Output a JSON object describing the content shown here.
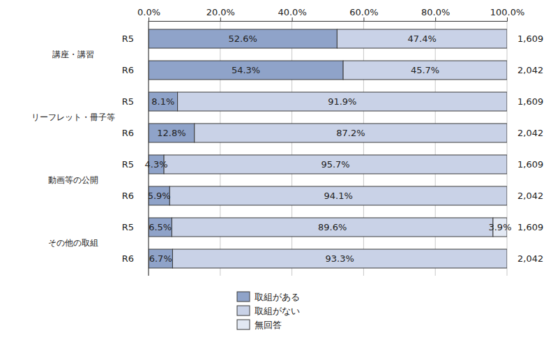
{
  "chart_data": {
    "type": "bar",
    "orientation": "horizontal",
    "stacked": true,
    "data_labels": true,
    "grid": true,
    "legend": "bottom",
    "categories": [
      "R5",
      "R6",
      "R5",
      "R6",
      "R5",
      "R6",
      "R5",
      "R6"
    ],
    "groups": [
      "講座・講習",
      "リーフレット・冊子等",
      "動画等の公開",
      "その他の取組"
    ],
    "n": [
      1609,
      2042,
      1609,
      2042,
      1609,
      2042,
      1609,
      2042
    ],
    "n_labels": [
      "1,609",
      "2,042",
      "1,609",
      "2,042",
      "1,609",
      "2,042",
      "1,609",
      "2,042"
    ],
    "xlim": [
      0,
      100
    ],
    "xticks": [
      {
        "value": 0,
        "label": "0.0%"
      },
      {
        "value": 20,
        "label": "20.0%"
      },
      {
        "value": 40,
        "label": "40.0%"
      },
      {
        "value": 60,
        "label": "60.0%"
      },
      {
        "value": 80,
        "label": "80.0%"
      },
      {
        "value": 100,
        "label": "100.0%"
      }
    ],
    "series": [
      {
        "name": "取組がある",
        "color": "#8fa3c9",
        "values": [
          52.6,
          54.3,
          8.1,
          12.8,
          4.3,
          5.9,
          6.5,
          6.7
        ],
        "value_labels": [
          "52.6%",
          "54.3%",
          "8.1%",
          "12.8%",
          "4.3%",
          "5.9%",
          "6.5%",
          "6.7%"
        ]
      },
      {
        "name": "取組がない",
        "color": "#c9d2e7",
        "values": [
          47.4,
          45.7,
          91.9,
          87.2,
          95.7,
          94.1,
          89.6,
          93.3
        ],
        "value_labels": [
          "47.4%",
          "45.7%",
          "91.9%",
          "87.2%",
          "95.7%",
          "94.1%",
          "89.6%",
          "93.3%"
        ]
      },
      {
        "name": "無回答",
        "color": "#e2e8f3",
        "values": [
          null,
          null,
          null,
          null,
          null,
          null,
          3.9,
          null
        ],
        "value_labels": [
          null,
          null,
          null,
          null,
          null,
          null,
          "3.9%",
          null
        ]
      }
    ]
  }
}
